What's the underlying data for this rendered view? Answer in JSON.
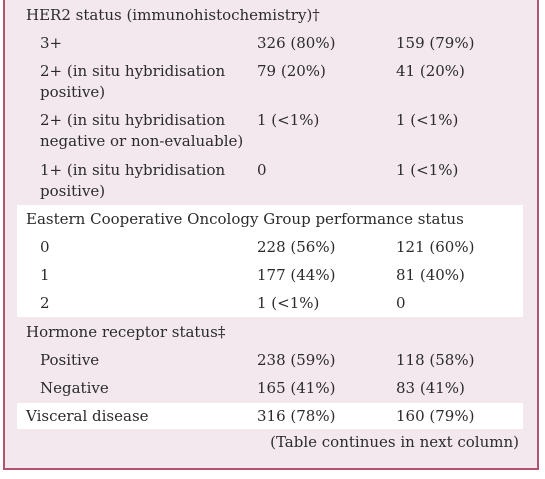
{
  "sections": [
    {
      "heading": "HER2 status (immunohistochemistry)†",
      "rows": [
        {
          "label": [
            "3+"
          ],
          "a": "326 (80%)",
          "b": "159 (79%)"
        },
        {
          "label": [
            "2+ (in situ hybridisation",
            "positive)"
          ],
          "a": "79 (20%)",
          "b": "41 (20%)"
        },
        {
          "label": [
            "2+ (in situ hybridisation",
            "negative or non-evaluable)"
          ],
          "a": "1 (<1%)",
          "b": "1 (<1%)"
        },
        {
          "label": [
            "1+ (in situ hybridisation",
            "positive)"
          ],
          "a": "0",
          "b": "1 (<1%)"
        }
      ]
    },
    {
      "heading": "Eastern Cooperative Oncology Group performance status",
      "rows": [
        {
          "label": [
            "0"
          ],
          "a": "228 (56%)",
          "b": "121 (60%)"
        },
        {
          "label": [
            "1"
          ],
          "a": "177 (44%)",
          "b": "81 (40%)"
        },
        {
          "label": [
            "2"
          ],
          "a": "1 (<1%)",
          "b": "0"
        }
      ]
    },
    {
      "heading": "Hormone receptor status‡",
      "rows": [
        {
          "label": [
            "Positive"
          ],
          "a": "238 (59%)",
          "b": "118 (58%)"
        },
        {
          "label": [
            "Negative"
          ],
          "a": "165 (41%)",
          "b": "83 (41%)"
        }
      ]
    },
    {
      "heading": "Visceral disease",
      "rows": [],
      "a": "316 (78%)",
      "b": "160 (79%)"
    }
  ],
  "footer": "(Table continues in next column)",
  "colors": {
    "border": "#b0546f",
    "tint": "#f3e8ee",
    "white": "#ffffff"
  }
}
